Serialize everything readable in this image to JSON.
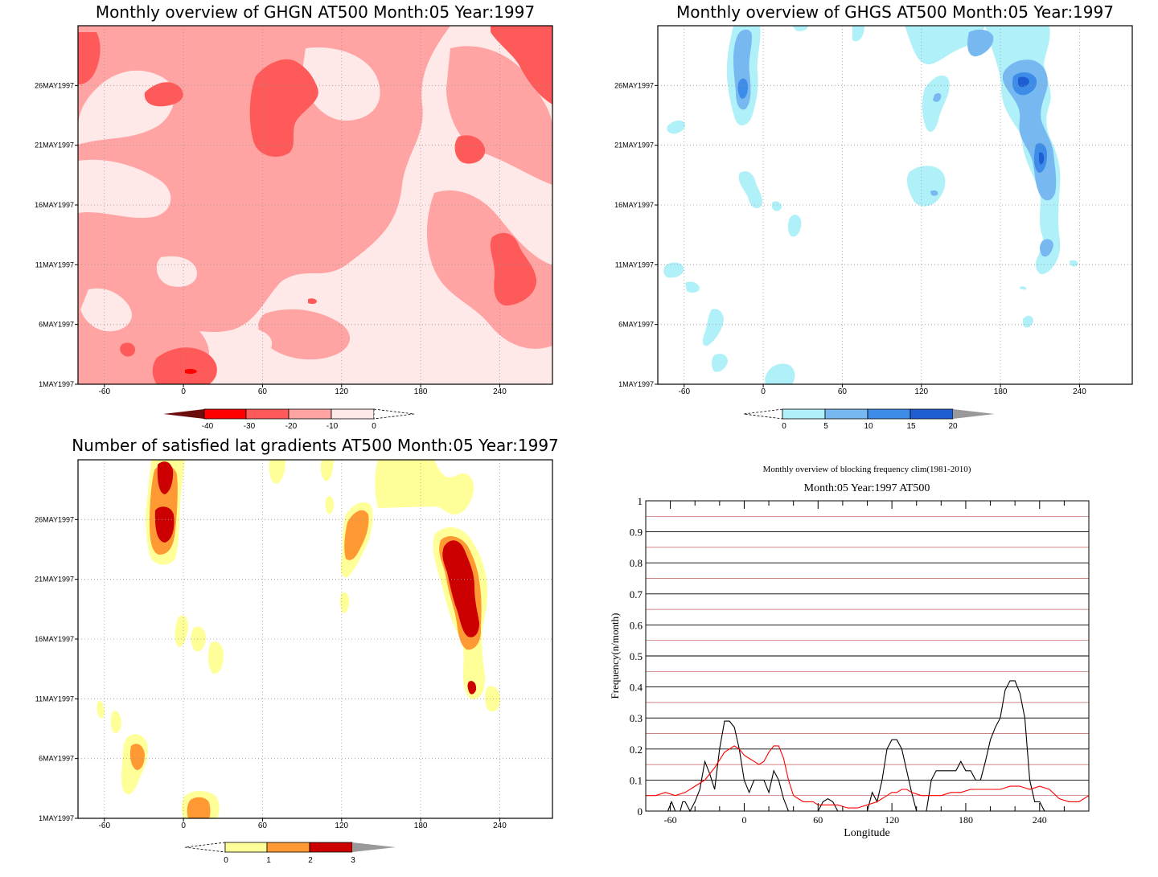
{
  "chart_data": [
    {
      "type": "heatmap",
      "title": "Monthly overview of GHGN AT500 Month:05 Year:1997",
      "x_ticks": [
        "-60",
        "0",
        "60",
        "120",
        "180",
        "240"
      ],
      "x_tick_values": [
        -60,
        0,
        60,
        120,
        180,
        240
      ],
      "y_ticks": [
        "1MAY1997",
        "6MAY1997",
        "11MAY1997",
        "16MAY1997",
        "21MAY1997",
        "26MAY1997"
      ],
      "xlim": [
        -80,
        280
      ],
      "grid": true,
      "colorbar": {
        "labels": [
          "-40",
          "-30",
          "-20",
          "-10",
          "0"
        ],
        "colors": [
          "#6b0d0d",
          "#ff0000",
          "#ff5a5a",
          "#ffa3a3",
          "#ffe8e8"
        ]
      }
    },
    {
      "type": "heatmap",
      "title": "Monthly overview of GHGS AT500 Month:05 Year:1997",
      "x_ticks": [
        "-60",
        "0",
        "60",
        "120",
        "180",
        "240"
      ],
      "x_tick_values": [
        -60,
        0,
        60,
        120,
        180,
        240
      ],
      "y_ticks": [
        "1MAY1997",
        "6MAY1997",
        "11MAY1997",
        "16MAY1997",
        "21MAY1997",
        "26MAY1997"
      ],
      "xlim": [
        -80,
        280
      ],
      "grid": true,
      "colorbar": {
        "labels": [
          "0",
          "5",
          "10",
          "15",
          "20"
        ],
        "colors": [
          "#b0f0f8",
          "#78b8f0",
          "#3c8ce8",
          "#1e5ed2",
          "#999999"
        ]
      }
    },
    {
      "type": "heatmap",
      "title": "Number of satisfied lat gradients AT500 Month:05 Year:1997",
      "x_ticks": [
        "-60",
        "0",
        "60",
        "120",
        "180",
        "240"
      ],
      "x_tick_values": [
        -60,
        0,
        60,
        120,
        180,
        240
      ],
      "y_ticks": [
        "1MAY1997",
        "6MAY1997",
        "11MAY1997",
        "16MAY1997",
        "21MAY1997",
        "26MAY1997"
      ],
      "xlim": [
        -80,
        280
      ],
      "grid": true,
      "colorbar": {
        "labels": [
          "0",
          "1",
          "2",
          "3"
        ],
        "colors": [
          "#ffff99",
          "#ff9933",
          "#cc0000",
          "#999999"
        ]
      }
    },
    {
      "type": "line",
      "title": "Monthly overview of blocking frequency clim(1981-2010)",
      "subtitle": "Month:05 Year:1997  AT500",
      "xlabel": "Longitude",
      "ylabel": "Frequency(n/month)",
      "xlim": [
        -80,
        280
      ],
      "ylim": [
        0,
        1
      ],
      "x_ticks": [
        "-60",
        "0",
        "60",
        "120",
        "180",
        "240"
      ],
      "x_tick_values": [
        -60,
        0,
        60,
        120,
        180,
        240
      ],
      "y_ticks": [
        "0",
        "0.1",
        "0.2",
        "0.3",
        "0.4",
        "0.5",
        "0.6",
        "0.7",
        "0.8",
        "0.9",
        "1"
      ],
      "grid": true,
      "series": [
        {
          "color": "#000000",
          "x": [
            -80,
            -62,
            -59,
            -56,
            -52,
            -50,
            -48,
            -44,
            -40,
            -36,
            -32,
            -28,
            -24,
            -20,
            -16,
            -12,
            -8,
            -4,
            0,
            4,
            8,
            12,
            16,
            20,
            24,
            28,
            32,
            36,
            40,
            44,
            48,
            52,
            56,
            60,
            64,
            68,
            72,
            76,
            80,
            84,
            88,
            92,
            96,
            100,
            104,
            108,
            112,
            116,
            120,
            124,
            128,
            132,
            136,
            140,
            144,
            148,
            152,
            156,
            160,
            164,
            168,
            172,
            176,
            180,
            184,
            188,
            192,
            196,
            200,
            204,
            208,
            212,
            216,
            220,
            224,
            228,
            232,
            236,
            240,
            244
          ],
          "y": [
            0,
            0,
            0.03,
            0,
            0,
            0.03,
            0.03,
            0,
            0.03,
            0.07,
            0.16,
            0.12,
            0.07,
            0.2,
            0.29,
            0.29,
            0.27,
            0.2,
            0.1,
            0.06,
            0.1,
            0.1,
            0.1,
            0.06,
            0.13,
            0.1,
            0.04,
            0,
            0,
            0,
            0,
            0,
            0,
            0,
            0.03,
            0.04,
            0.03,
            0,
            0,
            0,
            0,
            0,
            0,
            0,
            0.06,
            0.03,
            0.1,
            0.2,
            0.23,
            0.23,
            0.2,
            0.13,
            0.06,
            0,
            0,
            0,
            0.1,
            0.13,
            0.13,
            0.13,
            0.13,
            0.13,
            0.16,
            0.13,
            0.13,
            0.1,
            0.1,
            0.16,
            0.23,
            0.27,
            0.3,
            0.39,
            0.42,
            0.42,
            0.38,
            0.3,
            0.1,
            0.03,
            0.03,
            0
          ],
          "connect_gaps": true
        },
        {
          "color": "#ff0000",
          "x": [
            -80,
            -72,
            -64,
            -56,
            -48,
            -40,
            -32,
            -24,
            -16,
            -8,
            -4,
            0,
            4,
            8,
            12,
            16,
            20,
            24,
            28,
            32,
            36,
            40,
            44,
            48,
            52,
            56,
            60,
            68,
            76,
            84,
            92,
            100,
            108,
            116,
            120,
            124,
            128,
            132,
            136,
            144,
            152,
            160,
            168,
            176,
            184,
            192,
            200,
            208,
            216,
            224,
            232,
            240,
            248,
            256,
            264,
            272,
            280
          ],
          "y": [
            0.05,
            0.05,
            0.06,
            0.05,
            0.06,
            0.08,
            0.1,
            0.14,
            0.19,
            0.21,
            0.2,
            0.18,
            0.17,
            0.16,
            0.15,
            0.16,
            0.19,
            0.21,
            0.21,
            0.17,
            0.1,
            0.05,
            0.04,
            0.03,
            0.03,
            0.03,
            0.02,
            0.02,
            0.02,
            0.01,
            0.01,
            0.02,
            0.03,
            0.05,
            0.06,
            0.06,
            0.07,
            0.07,
            0.06,
            0.05,
            0.05,
            0.05,
            0.06,
            0.06,
            0.07,
            0.07,
            0.07,
            0.07,
            0.08,
            0.08,
            0.07,
            0.08,
            0.07,
            0.04,
            0.03,
            0.03,
            0.05
          ]
        }
      ]
    }
  ]
}
